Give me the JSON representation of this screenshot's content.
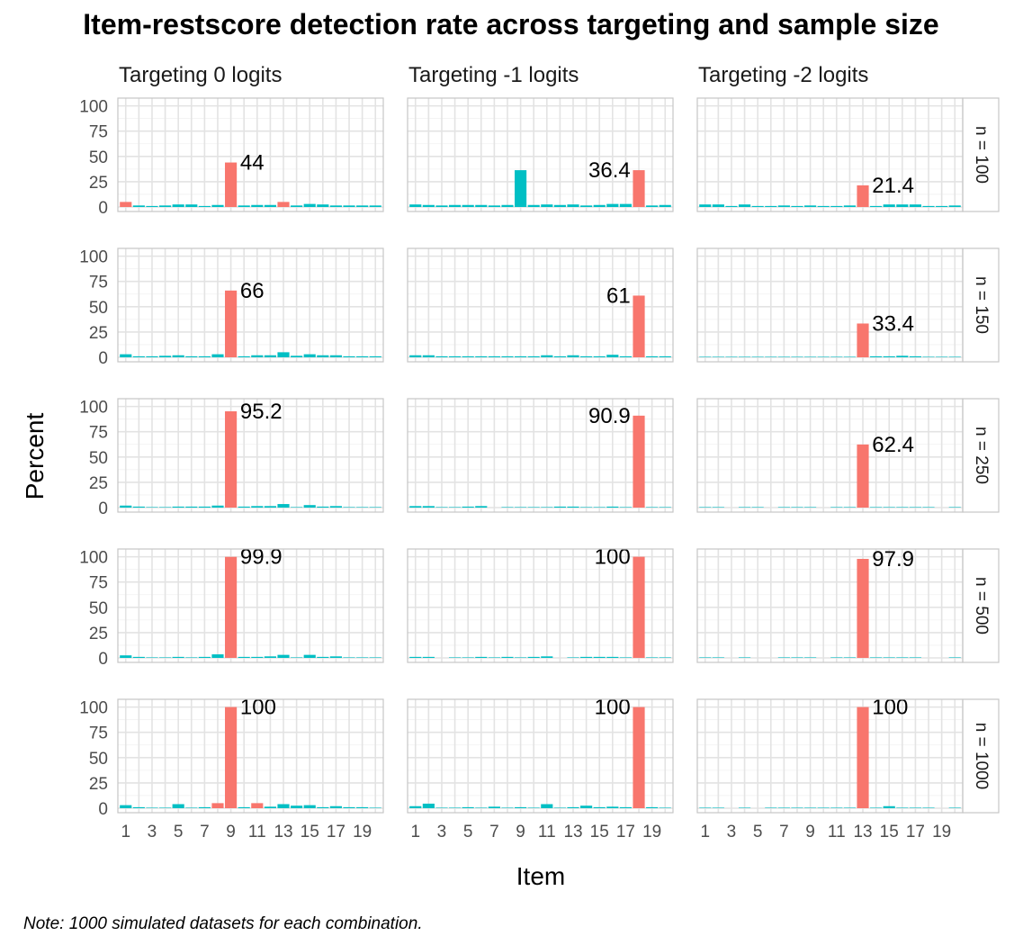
{
  "chart_data": {
    "type": "bar",
    "title": "Item-restscore detection rate across targeting and sample size",
    "xlabel": "Item",
    "ylabel": "Percent",
    "caption": "Note: 1000 simulated datasets for each combination.",
    "ylim": [
      0,
      100
    ],
    "yticks": [
      0,
      25,
      50,
      75,
      100
    ],
    "xticks": [
      "1",
      "3",
      "5",
      "7",
      "9",
      "11",
      "13",
      "15",
      "17",
      "19"
    ],
    "items": [
      1,
      2,
      3,
      4,
      5,
      6,
      7,
      8,
      9,
      10,
      11,
      12,
      13,
      14,
      15,
      16,
      17,
      18,
      19,
      20
    ],
    "grid": true,
    "legend": "none",
    "colors": {
      "flagged": "#F8766D",
      "other": "#00BFC4"
    },
    "columns": [
      "Targeting 0 logits",
      "Targeting -1 logits",
      "Targeting -2 logits"
    ],
    "rows": [
      "n = 100",
      "n = 150",
      "n = 250",
      "n = 500",
      "n = 1000"
    ],
    "panels": [
      [
        {
          "values": [
            5,
            1.5,
            1,
            1.5,
            2.5,
            2.5,
            1,
            2,
            44,
            1.5,
            2,
            2,
            5,
            1.5,
            3,
            2.5,
            1.5,
            1.5,
            1.5,
            1.5
          ],
          "highlight": [
            1,
            9,
            13
          ],
          "label": "44",
          "label_item": 9
        },
        {
          "values": [
            2.5,
            2,
            1.5,
            2,
            2,
            2,
            1.5,
            2,
            36.4,
            2,
            2.5,
            2,
            2.5,
            1.5,
            2,
            3,
            3,
            36.4,
            1.5,
            2
          ],
          "highlight": [
            18
          ],
          "label": "36.4",
          "label_item": 18
        },
        {
          "values": [
            2.5,
            2.5,
            1,
            2.5,
            1,
            1,
            1.5,
            1,
            1.5,
            1,
            1,
            1.5,
            21.4,
            1,
            2.5,
            2.5,
            2.5,
            1,
            1,
            1.5
          ],
          "highlight": [
            13
          ],
          "label": "21.4",
          "label_item": 13
        }
      ],
      [
        {
          "values": [
            3,
            1,
            1,
            1.5,
            2,
            1,
            1,
            3,
            66,
            1,
            2,
            2,
            5,
            1.5,
            3,
            2,
            2,
            1,
            1,
            1
          ],
          "highlight": [
            9
          ],
          "label": "66",
          "label_item": 9
        },
        {
          "values": [
            2,
            2,
            1,
            1,
            1,
            1,
            1,
            1,
            1,
            1,
            2,
            1,
            2,
            1,
            1,
            2.5,
            1,
            61,
            1,
            1
          ],
          "highlight": [
            18
          ],
          "label": "61",
          "label_item": 18
        },
        {
          "values": [
            0.5,
            0.5,
            0.5,
            0.5,
            0.5,
            0.5,
            0.5,
            0.5,
            0.5,
            0.5,
            0.5,
            0.5,
            33.4,
            1,
            1,
            1.5,
            1,
            0.5,
            0.5,
            0.5
          ],
          "highlight": [
            13
          ],
          "label": "33.4",
          "label_item": 13
        }
      ],
      [
        {
          "values": [
            2,
            1,
            0.5,
            0.5,
            1,
            1,
            1,
            2,
            95.2,
            1,
            1.5,
            1.5,
            3.5,
            0.5,
            2.5,
            1,
            1.5,
            0.5,
            0.5,
            0.5
          ],
          "highlight": [
            9
          ],
          "label": "95.2",
          "label_item": 9
        },
        {
          "values": [
            1.5,
            1.5,
            0.5,
            0.5,
            1,
            1.5,
            0,
            0.5,
            0.5,
            0.5,
            0.5,
            1,
            1,
            0.5,
            0.5,
            1,
            0.5,
            90.9,
            0.5,
            0.5
          ],
          "highlight": [
            18
          ],
          "label": "90.9",
          "label_item": 18
        },
        {
          "values": [
            0.5,
            0.5,
            0,
            0.5,
            0.5,
            0,
            0.5,
            0.5,
            0.5,
            0,
            0.5,
            0.5,
            62.4,
            0.5,
            0.5,
            0.5,
            0.5,
            0.5,
            0,
            0.5
          ],
          "highlight": [
            13
          ],
          "label": "62.4",
          "label_item": 13
        }
      ],
      [
        {
          "values": [
            2.5,
            1,
            0.5,
            0.5,
            1,
            0.5,
            1,
            3.5,
            99.9,
            1,
            1,
            1.5,
            3,
            0.5,
            3,
            1,
            1.5,
            0.5,
            0.5,
            0.5
          ],
          "highlight": [
            9
          ],
          "label": "99.9",
          "label_item": 9
        },
        {
          "values": [
            1,
            1,
            0,
            0.5,
            0.5,
            1,
            0.5,
            1,
            0.5,
            1,
            1.5,
            0,
            0.5,
            1,
            1,
            1,
            0.5,
            100,
            0.5,
            0.5
          ],
          "highlight": [
            18
          ],
          "label": "100",
          "label_item": 18
        },
        {
          "values": [
            0.5,
            0.5,
            0,
            0.5,
            0,
            0,
            0.5,
            0.5,
            0.5,
            0,
            0.5,
            0.5,
            97.9,
            0.5,
            0.5,
            0.5,
            0.5,
            0,
            0,
            0.5
          ],
          "highlight": [
            13
          ],
          "label": "97.9",
          "label_item": 13
        }
      ],
      [
        {
          "values": [
            3,
            1,
            0.5,
            0.5,
            4,
            0.5,
            1,
            5,
            100,
            1,
            5,
            1.5,
            4,
            2.5,
            3,
            1,
            2,
            1,
            1,
            0.5
          ],
          "highlight": [
            8,
            9,
            11
          ],
          "label": "100",
          "label_item": 9
        },
        {
          "values": [
            2,
            4.5,
            0.5,
            0.5,
            1,
            0.5,
            1.5,
            0.5,
            1,
            0.5,
            4,
            0.5,
            1,
            2.5,
            1,
            1.5,
            1,
            100,
            1,
            0.5
          ],
          "highlight": [
            18
          ],
          "label": "100",
          "label_item": 18
        },
        {
          "values": [
            0.5,
            0.5,
            0,
            0.5,
            0,
            0.5,
            0.5,
            0.5,
            0.5,
            0.5,
            0.5,
            0.5,
            100,
            0.5,
            2,
            0.5,
            0.5,
            0.5,
            0,
            0.5
          ],
          "highlight": [
            13
          ],
          "label": "100",
          "label_item": 13
        }
      ]
    ]
  }
}
